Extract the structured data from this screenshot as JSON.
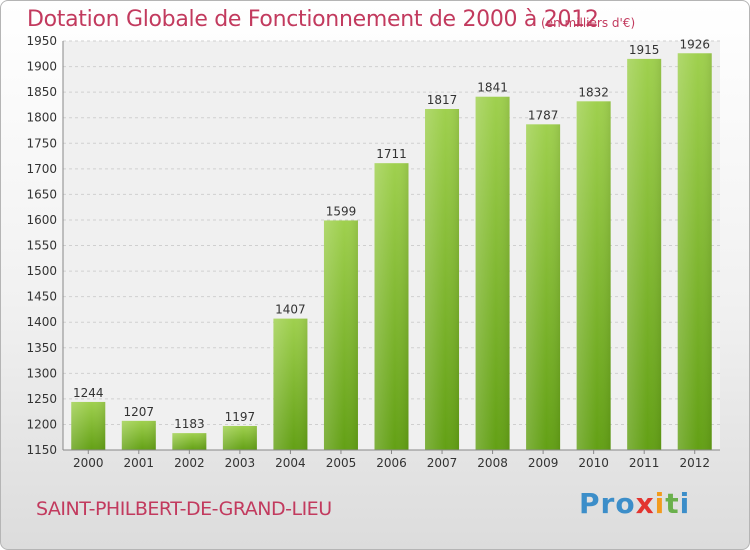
{
  "chart_data": {
    "type": "bar",
    "title": "Dotation Globale de Fonctionnement de 2000 à 2012",
    "subtitle": "(en milliers d'€)",
    "categories": [
      "2000",
      "2001",
      "2002",
      "2003",
      "2004",
      "2005",
      "2006",
      "2007",
      "2008",
      "2009",
      "2010",
      "2011",
      "2012"
    ],
    "values": [
      1244,
      1207,
      1183,
      1197,
      1407,
      1599,
      1711,
      1817,
      1841,
      1787,
      1832,
      1915,
      1926
    ],
    "ylim": [
      1150,
      1950
    ],
    "yticks": [
      1150,
      1200,
      1250,
      1300,
      1350,
      1400,
      1450,
      1500,
      1550,
      1600,
      1650,
      1700,
      1750,
      1800,
      1850,
      1900,
      1950
    ],
    "xlabel": "",
    "ylabel": "",
    "grid": true,
    "data_labels": true,
    "bar_color_top": "#9fd04e",
    "bar_color_bottom": "#63a015"
  },
  "footer": {
    "commune": "SAINT-PHILBERT-DE-GRAND-LIEU",
    "logo": {
      "p": "Pro",
      "x": "x",
      "i1": "i",
      "t": "t",
      "i2": "i"
    }
  },
  "colors": {
    "accent": "#c23a5e"
  }
}
